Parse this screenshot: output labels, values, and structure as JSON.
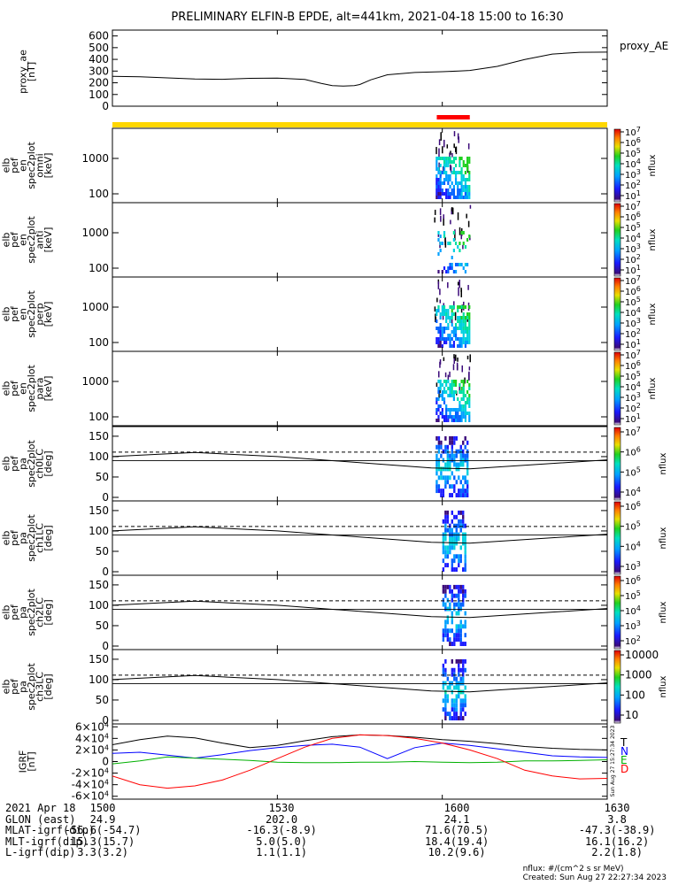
{
  "title": "PRELIMINARY ELFIN-B EPDE, alt=441km, 2021-04-18 15:00 to 16:30",
  "chart_data": [
    {
      "type": "line",
      "name": "proxy_ae",
      "ylabel_lines": [
        "proxy_ae",
        "[nT]"
      ],
      "legend": "proxy_AE",
      "ylim": [
        0,
        650
      ],
      "yticks": [
        "0",
        "100",
        "200",
        "300",
        "400",
        "500",
        "600"
      ],
      "x": [
        0,
        5,
        10,
        15,
        20,
        25,
        30,
        35,
        38,
        40,
        42,
        44,
        45,
        47,
        50,
        55,
        60,
        63,
        65,
        70,
        75,
        80,
        85,
        90
      ],
      "values": [
        255,
        252,
        242,
        232,
        230,
        238,
        240,
        228,
        195,
        175,
        172,
        176,
        185,
        225,
        268,
        288,
        295,
        300,
        305,
        340,
        398,
        445,
        460,
        462
      ]
    },
    {
      "type": "heatmap",
      "name": "spectrogram-omni",
      "ylabel_lines": [
        "elb",
        "pef",
        "en",
        "spec2plot",
        "omni",
        "[keV]"
      ],
      "yticks": [
        "100",
        "1000"
      ],
      "colorbar": {
        "label": "nflux",
        "ticks": [
          "10^1",
          "10^2",
          "10^3",
          "10^4",
          "10^5",
          "10^6",
          "10^7"
        ]
      }
    },
    {
      "type": "heatmap",
      "name": "spectrogram-anti",
      "ylabel_lines": [
        "elb",
        "pef",
        "en",
        "spec2plot",
        "anti",
        "[keV]"
      ],
      "yticks": [
        "100",
        "1000"
      ],
      "colorbar": {
        "label": "nflux",
        "ticks": [
          "10^1",
          "10^2",
          "10^3",
          "10^4",
          "10^5",
          "10^6",
          "10^7"
        ]
      }
    },
    {
      "type": "heatmap",
      "name": "spectrogram-perp",
      "ylabel_lines": [
        "elb",
        "pef",
        "en",
        "spec2plot",
        "perp",
        "[keV]"
      ],
      "yticks": [
        "100",
        "1000"
      ],
      "colorbar": {
        "label": "nflux",
        "ticks": [
          "10^1",
          "10^2",
          "10^3",
          "10^4",
          "10^5",
          "10^6",
          "10^7"
        ]
      }
    },
    {
      "type": "heatmap",
      "name": "spectrogram-para",
      "ylabel_lines": [
        "elb",
        "pef",
        "en",
        "spec2plot",
        "para",
        "[keV]"
      ],
      "yticks": [
        "100",
        "1000"
      ],
      "colorbar": {
        "label": "nflux",
        "ticks": [
          "10^1",
          "10^2",
          "10^3",
          "10^4",
          "10^5",
          "10^6",
          "10^7"
        ]
      }
    },
    {
      "type": "heatmap",
      "name": "pitch-angle-ch0LC",
      "ylabel_lines": [
        "elb",
        "pef",
        "pa",
        "spec2plot",
        "ch0LC",
        "[deg]"
      ],
      "ylim": [
        0,
        180
      ],
      "yticks": [
        "0",
        "50",
        "100",
        "150"
      ],
      "colorbar": {
        "label": "nflux",
        "ticks": [
          "10^4",
          "10^5",
          "10^6",
          "10^7"
        ]
      }
    },
    {
      "type": "heatmap",
      "name": "pitch-angle-ch1LC",
      "ylabel_lines": [
        "elb",
        "pef",
        "pa",
        "spec2plot",
        "ch1LC",
        "[deg]"
      ],
      "ylim": [
        0,
        180
      ],
      "yticks": [
        "0",
        "50",
        "100",
        "150"
      ],
      "colorbar": {
        "label": "nflux",
        "ticks": [
          "10^3",
          "10^4",
          "10^5",
          "10^6"
        ]
      }
    },
    {
      "type": "heatmap",
      "name": "pitch-angle-ch2LC",
      "ylabel_lines": [
        "elb",
        "pef",
        "pa",
        "spec2plot",
        "ch2LC",
        "[deg]"
      ],
      "ylim": [
        0,
        180
      ],
      "yticks": [
        "0",
        "50",
        "100",
        "150"
      ],
      "colorbar": {
        "label": "nflux",
        "ticks": [
          "10^2",
          "10^3",
          "10^4",
          "10^5",
          "10^6"
        ]
      }
    },
    {
      "type": "heatmap",
      "name": "pitch-angle-ch3LC",
      "ylabel_lines": [
        "elb",
        "pef",
        "pa",
        "spec2plot",
        "ch3LC",
        "[deg]"
      ],
      "ylim": [
        0,
        180
      ],
      "yticks": [
        "0",
        "50",
        "100",
        "150"
      ],
      "colorbar": {
        "label": "nflux",
        "ticks": [
          "10",
          "100",
          "1000",
          "10000"
        ]
      }
    },
    {
      "type": "line",
      "name": "igrf",
      "ylabel_lines": [
        "IGRF",
        "[nT]"
      ],
      "ylim": [
        -65000,
        65000
      ],
      "yticks": [
        "-6×10^4",
        "-4×10^4",
        "-2×10^4",
        "0",
        "2×10^4",
        "4×10^4",
        "6×10^4"
      ],
      "x": [
        0,
        5,
        10,
        15,
        20,
        25,
        30,
        35,
        40,
        45,
        50,
        55,
        60,
        65,
        70,
        75,
        80,
        85,
        90
      ],
      "series": [
        {
          "name": "T",
          "color": "#000000",
          "values": [
            29000,
            38000,
            44000,
            41000,
            32000,
            24000,
            28000,
            36000,
            43000,
            46000,
            45000,
            42000,
            38000,
            35000,
            31000,
            26000,
            23000,
            21000,
            20000
          ]
        },
        {
          "name": "N",
          "color": "#0000ff",
          "values": [
            14000,
            16000,
            11000,
            6000,
            12000,
            19000,
            24000,
            28000,
            30000,
            25000,
            5000,
            24000,
            32000,
            28000,
            22000,
            16000,
            10000,
            8000,
            7000
          ]
        },
        {
          "name": "E",
          "color": "#00b000",
          "values": [
            -4000,
            1000,
            8000,
            6000,
            4000,
            2000,
            -1000,
            -2000,
            -2000,
            -1000,
            -1000,
            0,
            -1000,
            -2000,
            -1000,
            1000,
            1000,
            2000,
            3000
          ]
        },
        {
          "name": "D",
          "color": "#ff0000",
          "values": [
            -25000,
            -40000,
            -46000,
            -42000,
            -32000,
            -15000,
            5000,
            25000,
            40000,
            46000,
            45000,
            40000,
            32000,
            20000,
            5000,
            -15000,
            -25000,
            -30000,
            -29000
          ]
        }
      ],
      "side_stamp": "Sun Aug 27 15:27:34 2023"
    }
  ],
  "time_axis": {
    "ticks": [
      "1500",
      "1530",
      "1600",
      "1630"
    ]
  },
  "footer": {
    "rows": [
      {
        "label": "2021 Apr 18",
        "values": [
          "1500",
          "1530",
          "1600",
          "1630"
        ]
      },
      {
        "label": "GLON (east)",
        "values": [
          "24.9",
          "202.0",
          "24.1",
          "3.8"
        ]
      },
      {
        "label": "MLAT-igrf(dip)",
        "values": [
          "-56.6(-54.7)",
          "-16.3(-8.9)",
          "71.6(70.5)",
          "-47.3(-38.9)"
        ]
      },
      {
        "label": "MLT-igrf(dip)",
        "values": [
          "15.3(15.7)",
          "5.0(5.0)",
          "18.4(19.4)",
          "16.1(16.2)"
        ]
      },
      {
        "label": "L-igrf(dip)",
        "values": [
          "3.3(3.2)",
          "1.1(1.1)",
          "10.2(9.6)",
          "2.2(1.8)"
        ]
      }
    ]
  },
  "note": {
    "line1": "nflux: #/(cm^2 s sr MeV)",
    "line2": "Created: Sun Aug 27 22:27:34 2023"
  },
  "colors": {
    "science_bar": "#ffd700",
    "science_mark": "#ff0000"
  }
}
